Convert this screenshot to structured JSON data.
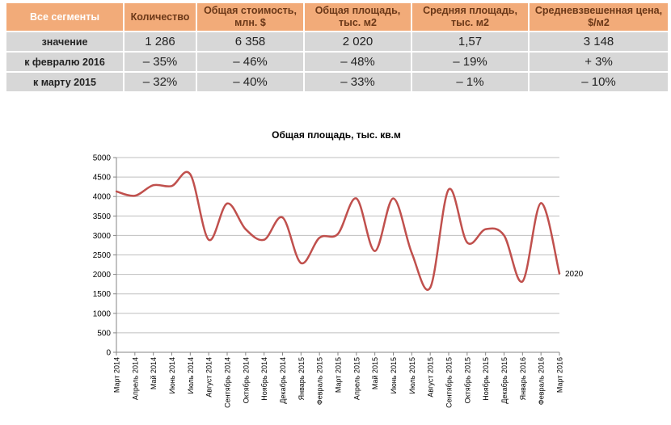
{
  "table": {
    "headers": [
      "Все сегменты",
      "Количество",
      "Общая стоимость, млн. $",
      "Общая площадь, тыс. м2",
      "Средняя площадь, тыс. м2",
      "Средневзвешенная цена, $/м2"
    ],
    "rows": [
      [
        "значение",
        "1 286",
        "6 358",
        "2 020",
        "1,57",
        "3 148"
      ],
      [
        "к февралю 2016",
        "– 35%",
        "– 46%",
        "– 48%",
        "– 19%",
        "+ 3%"
      ],
      [
        "к марту 2015",
        "– 32%",
        "– 40%",
        "– 33%",
        "– 1%",
        "– 10%"
      ]
    ]
  },
  "chart_data": {
    "type": "line",
    "title": "Общая площадь, тыс. кв.м",
    "xlabel": "",
    "ylabel": "",
    "ylim": [
      0,
      5000
    ],
    "yticks": [
      0,
      500,
      1000,
      1500,
      2000,
      2500,
      3000,
      3500,
      4000,
      4500,
      5000
    ],
    "grid": true,
    "categories": [
      "Март 2014",
      "Апрель 2014",
      "Май 2014",
      "Июнь 2014",
      "Июль 2014",
      "Август 2014",
      "Сентябрь 2014",
      "Октябрь 2014",
      "Ноябрь 2014",
      "Декабрь 2014",
      "Январь 2015",
      "Февраль 2015",
      "Март 2015",
      "Апрель 2015",
      "Май 2015",
      "Июнь 2015",
      "Июль 2015",
      "Август 2015",
      "Сентябрь 2015",
      "Октябрь 2015",
      "Ноябрь 2015",
      "Декабрь 2015",
      "Январь 2016",
      "Февраль 2016",
      "Март 2016"
    ],
    "series": [
      {
        "name": "",
        "color": "#c0504d",
        "values": [
          4130,
          4020,
          4290,
          4270,
          4570,
          2890,
          3820,
          3160,
          2890,
          3460,
          2290,
          2940,
          3040,
          3950,
          2600,
          3950,
          2550,
          1660,
          4180,
          2820,
          3160,
          3000,
          1820,
          3830,
          2020
        ]
      }
    ],
    "end_label": "2020"
  }
}
